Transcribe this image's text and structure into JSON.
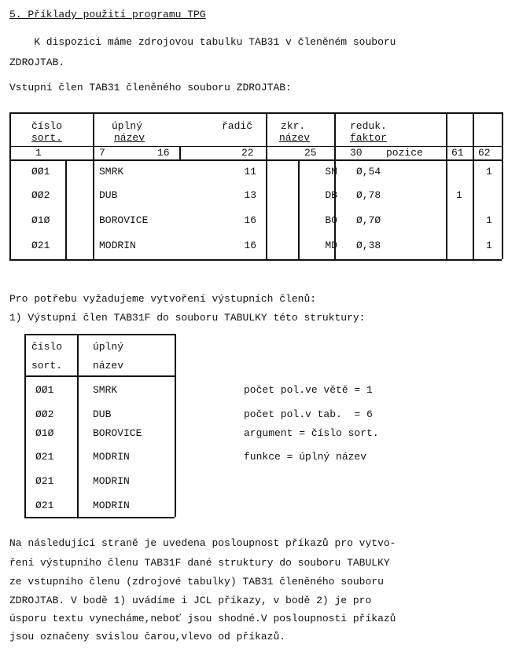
{
  "heading": "5. Příklady použití programu TPG",
  "intro": [
    "    K dispozici máme zdrojovou tabulku TAB31 v členěném souboru",
    "ZDROJTAB."
  ],
  "input_label": "Vstupní člen TAB31 členěného souboru ZDROJTAB:",
  "table1": {
    "headers": [
      [
        "číslo",
        "sort."
      ],
      [
        "úplný",
        "název"
      ],
      [
        "řadič",
        ""
      ],
      [
        "zkr.",
        "název"
      ],
      [
        "reduk.",
        "faktor"
      ],
      [
        "",
        ""
      ],
      [
        "",
        ""
      ]
    ],
    "positions": [
      "1",
      "7",
      "16",
      "22",
      "25",
      "30",
      "pozice",
      "61",
      "62"
    ],
    "rows": [
      [
        "ØØ1",
        "SMRK",
        "11",
        "SM",
        "Ø,54",
        "",
        "1"
      ],
      [
        "ØØ2",
        "DUB",
        "13",
        "DB",
        "Ø,78",
        "1",
        ""
      ],
      [
        "Ø1Ø",
        "BOROVICE",
        "16",
        "BO",
        "Ø,7Ø",
        "",
        "1"
      ],
      [
        "Ø21",
        "MODRIN",
        "16",
        "MD",
        "Ø,38",
        "",
        "1"
      ]
    ]
  },
  "need_text": [
    "Pro potřebu vyžadujeme vytvoření výstupních členů:",
    "1) Výstupní člen TAB31F do souboru TABULKY této struktury:"
  ],
  "table2": {
    "headers": [
      [
        "číslo",
        "sort."
      ],
      [
        "úplný",
        "název"
      ]
    ],
    "rows": [
      [
        "ØØ1",
        "SMRK"
      ],
      [
        "ØØ2",
        "DUB"
      ],
      [
        "Ø1Ø",
        "BOROVICE"
      ],
      [
        "Ø21",
        "MODRIN"
      ],
      [
        "Ø21",
        "MODRIN"
      ],
      [
        "Ø21",
        "MODRIN"
      ]
    ]
  },
  "params": [
    "počet pol.ve větě = 1",
    "počet pol.v tab.  = 6",
    "argument = číslo sort.",
    "funkce = úplný název"
  ],
  "closing": [
    "Na následující straně je uvedena posloupnost příkazů pro vytvo-",
    "ření výstupního členu TAB31F dané struktury do souboru TABULKY",
    "ze vstupního členu (zdrojové tabulky) TAB31 členěného souboru",
    "ZDROJTAB. V bodě 1) uvádíme i JCL příkazy, v bodě 2) je pro",
    "úsporu textu vynecháme,neboť jsou shodné.V posloupnosti příkazů",
    "jsou označeny svislou čarou,vlevo od příkazů."
  ]
}
